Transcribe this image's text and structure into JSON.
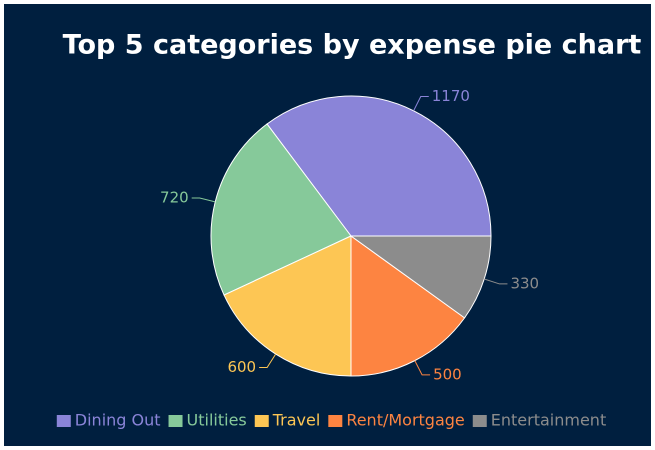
{
  "chart_data": {
    "type": "pie",
    "title": "Top 5 categories by expense pie chart",
    "categories": [
      "Dining Out",
      "Utilities",
      "Travel",
      "Rent/Mortgage",
      "Entertainment"
    ],
    "values": [
      1170,
      720,
      600,
      500,
      330
    ],
    "colors": [
      "#8a84d8",
      "#86c99a",
      "#fdc654",
      "#fd8441",
      "#8c8c8c"
    ],
    "legend": "bottom"
  }
}
